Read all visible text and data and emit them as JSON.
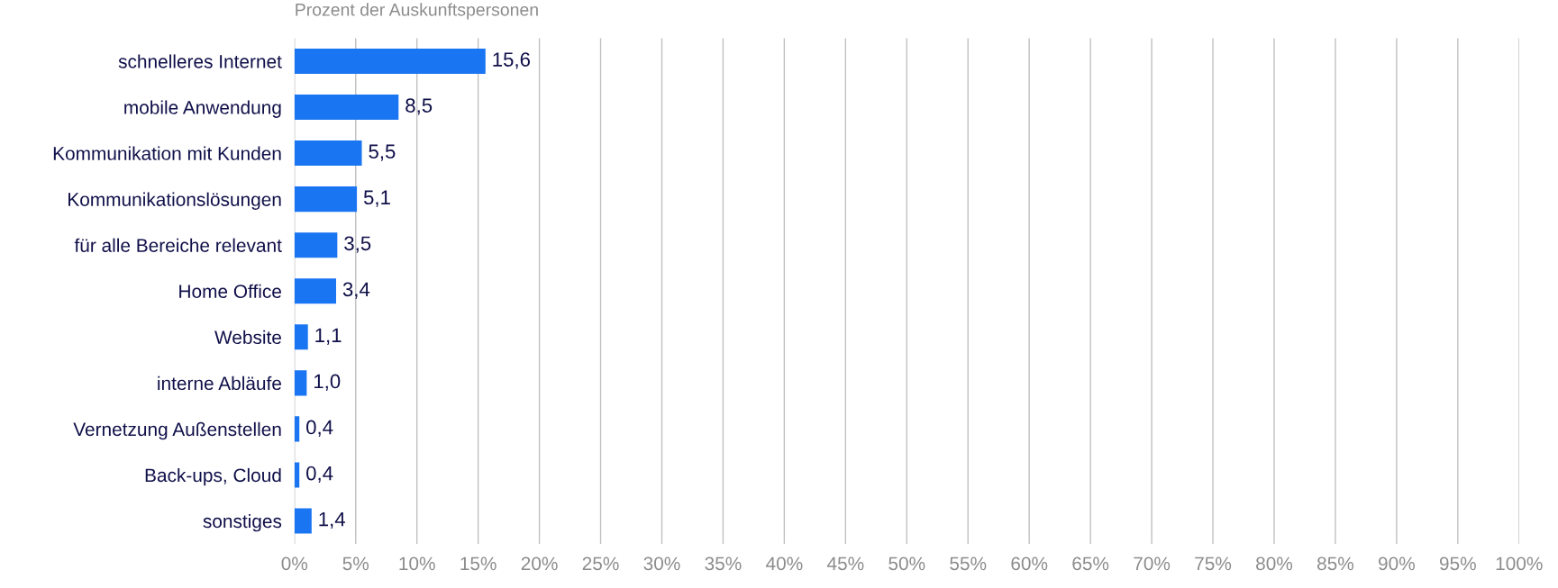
{
  "chart_data": {
    "type": "bar",
    "orientation": "horizontal",
    "title": "Prozent der Auskunftspersonen",
    "categories": [
      "schnelleres Internet",
      "mobile Anwendung",
      "Kommunikation mit Kunden",
      "Kommunikationslösungen",
      "für alle Bereiche relevant",
      "Home Office",
      "Website",
      "interne Abläufe",
      "Vernetzung Außenstellen",
      "Back-ups, Cloud",
      "sonstiges"
    ],
    "values": [
      15.6,
      8.5,
      5.5,
      5.1,
      3.5,
      3.4,
      1.1,
      1.0,
      0.4,
      0.4,
      1.4
    ],
    "value_labels": [
      "15,6",
      "8,5",
      "5,5",
      "5,1",
      "3,5",
      "3,4",
      "1,1",
      "1,0",
      "0,4",
      "0,4",
      "1,4"
    ],
    "color": "#1a75f2",
    "xlim": [
      0,
      100
    ],
    "xticks": [
      {
        "value": 0,
        "label": "0%"
      },
      {
        "value": 5,
        "label": "5%"
      },
      {
        "value": 10,
        "label": "10%"
      },
      {
        "value": 15,
        "label": "15%"
      },
      {
        "value": 20,
        "label": "20%"
      },
      {
        "value": 25,
        "label": "25%"
      },
      {
        "value": 30,
        "label": "30%"
      },
      {
        "value": 35,
        "label": "35%"
      },
      {
        "value": 40,
        "label": "40%"
      },
      {
        "value": 45,
        "label": "45%"
      },
      {
        "value": 50,
        "label": "50%"
      },
      {
        "value": 55,
        "label": "55%"
      },
      {
        "value": 60,
        "label": "60%"
      },
      {
        "value": 65,
        "label": "65%"
      },
      {
        "value": 70,
        "label": "70%"
      },
      {
        "value": 75,
        "label": "75%"
      },
      {
        "value": 80,
        "label": "80%"
      },
      {
        "value": 85,
        "label": "85%"
      },
      {
        "value": 90,
        "label": "90%"
      },
      {
        "value": 95,
        "label": "95%"
      },
      {
        "value": 100,
        "label": "100%"
      }
    ],
    "grid": "x",
    "legend": false
  }
}
